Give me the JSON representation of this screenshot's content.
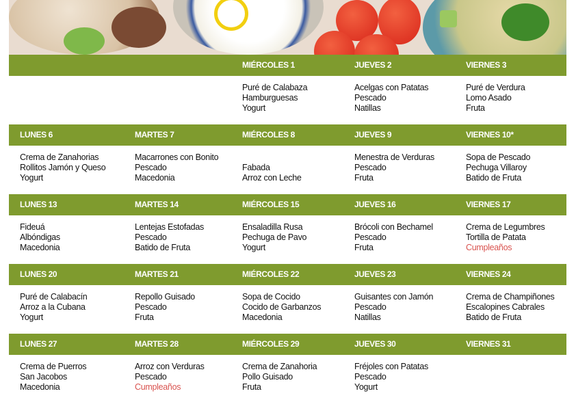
{
  "colors": {
    "header_bg": "#7f9b2e",
    "header_text": "#ffffff",
    "highlight": "#d9534f"
  },
  "banner": {
    "description_icons": [
      "pita-sandwich-image",
      "yogurt-bowl-image",
      "tomatoes-image",
      "tabbouleh-salad-image"
    ]
  },
  "weeks": [
    {
      "days": [
        {
          "header": "",
          "items": []
        },
        {
          "header": "",
          "items": []
        },
        {
          "header": "MIÉRCOLES 1",
          "items": [
            {
              "text": "Puré de Calabaza"
            },
            {
              "text": "Hamburguesas"
            },
            {
              "text": "Yogurt"
            }
          ]
        },
        {
          "header": "JUEVES 2",
          "items": [
            {
              "text": "Acelgas con Patatas"
            },
            {
              "text": "Pescado"
            },
            {
              "text": "Natillas"
            }
          ]
        },
        {
          "header": "VIERNES 3",
          "items": [
            {
              "text": "Puré de Verdura"
            },
            {
              "text": "Lomo Asado"
            },
            {
              "text": "Fruta"
            }
          ]
        }
      ]
    },
    {
      "days": [
        {
          "header": "LUNES 6",
          "items": [
            {
              "text": "Crema de Zanahorias"
            },
            {
              "text": "Rollitos Jamón y Queso"
            },
            {
              "text": "Yogurt"
            }
          ]
        },
        {
          "header": "MARTES 7",
          "items": [
            {
              "text": "Macarrones con Bonito"
            },
            {
              "text": "Pescado"
            },
            {
              "text": "Macedonia"
            }
          ]
        },
        {
          "header": "MIÉRCOLES 8",
          "items": [
            {
              "text": ""
            },
            {
              "text": "Fabada"
            },
            {
              "text": "Arroz con Leche"
            }
          ]
        },
        {
          "header": "JUEVES 9",
          "items": [
            {
              "text": "Menestra de Verduras"
            },
            {
              "text": "Pescado"
            },
            {
              "text": "Fruta"
            }
          ]
        },
        {
          "header": "VIERNES 10*",
          "items": [
            {
              "text": "Sopa de Pescado"
            },
            {
              "text": "Pechuga Villaroy"
            },
            {
              "text": "Batido de Fruta"
            }
          ]
        }
      ]
    },
    {
      "days": [
        {
          "header": "LUNES 13",
          "items": [
            {
              "text": "Fideuá"
            },
            {
              "text": "Albóndigas"
            },
            {
              "text": "Macedonia"
            }
          ]
        },
        {
          "header": "MARTES 14",
          "items": [
            {
              "text": "Lentejas Estofadas"
            },
            {
              "text": "Pescado"
            },
            {
              "text": "Batido de Fruta"
            }
          ]
        },
        {
          "header": "MIÉRCOLES 15",
          "items": [
            {
              "text": "Ensaladilla Rusa"
            },
            {
              "text": "Pechuga de Pavo"
            },
            {
              "text": "Yogurt"
            }
          ]
        },
        {
          "header": "JUEVES 16",
          "items": [
            {
              "text": "Brócoli con Bechamel"
            },
            {
              "text": "Pescado"
            },
            {
              "text": "Fruta"
            }
          ]
        },
        {
          "header": "VIERNES 17",
          "items": [
            {
              "text": "Crema de Legumbres"
            },
            {
              "text": "Tortilla de Patata"
            },
            {
              "text": "Cumpleaños",
              "highlight": true
            }
          ]
        }
      ]
    },
    {
      "days": [
        {
          "header": "LUNES 20",
          "items": [
            {
              "text": "Puré de Calabacín"
            },
            {
              "text": "Arroz a la Cubana"
            },
            {
              "text": "Yogurt"
            }
          ]
        },
        {
          "header": "MARTES 21",
          "items": [
            {
              "text": "Repollo Guisado"
            },
            {
              "text": "Pescado"
            },
            {
              "text": "Fruta"
            }
          ]
        },
        {
          "header": "MIÉRCOLES 22",
          "items": [
            {
              "text": "Sopa de Cocido"
            },
            {
              "text": "Cocido de Garbanzos"
            },
            {
              "text": "Macedonia"
            }
          ]
        },
        {
          "header": "JUEVES 23",
          "items": [
            {
              "text": "Guisantes con Jamón"
            },
            {
              "text": "Pescado"
            },
            {
              "text": "Natillas"
            }
          ]
        },
        {
          "header": "VIERNES 24",
          "items": [
            {
              "text": "Crema de Champiñones"
            },
            {
              "text": "Escalopines Cabrales"
            },
            {
              "text": "Batido de Fruta"
            }
          ]
        }
      ]
    },
    {
      "days": [
        {
          "header": "LUNES 27",
          "items": [
            {
              "text": "Crema de Puerros"
            },
            {
              "text": "San Jacobos"
            },
            {
              "text": "Macedonia"
            }
          ]
        },
        {
          "header": "MARTES 28",
          "items": [
            {
              "text": "Arroz con Verduras"
            },
            {
              "text": "Pescado"
            },
            {
              "text": "Cumpleaños",
              "highlight": true
            }
          ]
        },
        {
          "header": "MIÉRCOLES 29",
          "items": [
            {
              "text": "Crema de Zanahoria"
            },
            {
              "text": "Pollo Guisado"
            },
            {
              "text": "Fruta"
            }
          ]
        },
        {
          "header": "JUEVES 30",
          "items": [
            {
              "text": "Fréjoles con Patatas"
            },
            {
              "text": "Pescado"
            },
            {
              "text": "Yogurt"
            }
          ]
        },
        {
          "header": "VIERNES 31",
          "items": []
        }
      ]
    }
  ]
}
